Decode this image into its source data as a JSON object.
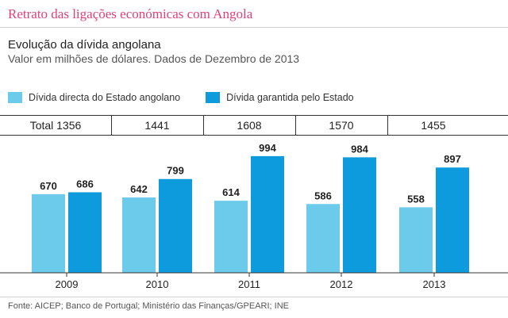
{
  "header": {
    "title": "Retrato das ligações económicas com Angola",
    "subtitle": "Evolução da dívida angolana",
    "description": "Valor em milhões de dólares. Dados de Dezembro de 2013"
  },
  "totals": [
    "Total 1356",
    "1441",
    "1608",
    "1570",
    "1455"
  ],
  "source": "Fonte: AICEP; Banco de Portugal; Ministério das Finanças/GPEARI; INE",
  "colors": {
    "accent": "#e0407a",
    "series_light": "#6ccbea",
    "series_dark": "#0e9bde"
  },
  "chart_data": {
    "type": "bar",
    "categories": [
      "2009",
      "2010",
      "2011",
      "2012",
      "2013"
    ],
    "series": [
      {
        "name": "Dívida directa do Estado angolano",
        "values": [
          670,
          642,
          614,
          586,
          558
        ],
        "color": "#6ccbea"
      },
      {
        "name": "Dívida garantida pelo Estado",
        "values": [
          686,
          799,
          994,
          984,
          897
        ],
        "color": "#0e9bde"
      }
    ],
    "ylim": [
      0,
      1050
    ],
    "grid": false,
    "legend": "top-left"
  }
}
